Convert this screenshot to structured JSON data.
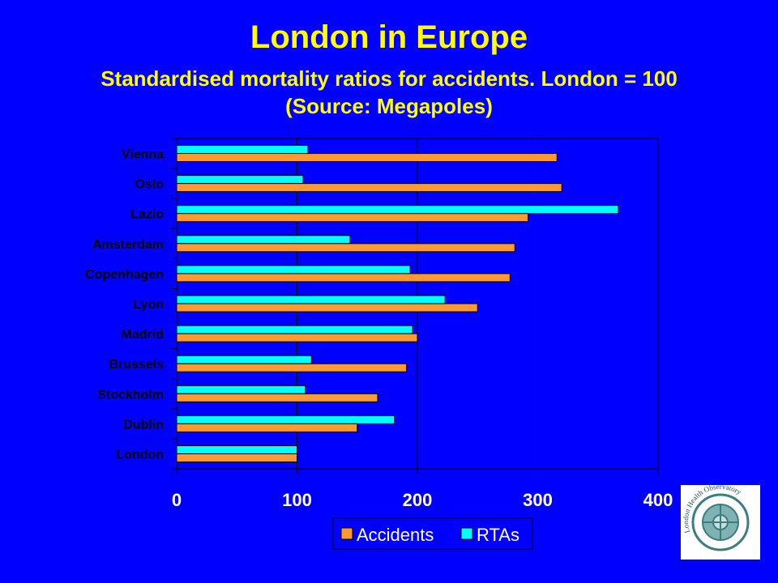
{
  "title": "London in Europe",
  "subtitle_line1": "Standardised mortality ratios for accidents. London = 100",
  "subtitle_line2": "(Source: Megapoles)",
  "colors": {
    "background": "#0000FF",
    "title": "#FFFF00",
    "accidents": "#FF9933",
    "rtas": "#00FFFF",
    "plot_area": "#0000FF",
    "axis_text": "#FFFFFF",
    "category_text": "#000000"
  },
  "logo": {
    "text": "London Health Observatory",
    "icon": "lho-compass-logo"
  },
  "chart_data": {
    "type": "bar",
    "orientation": "horizontal",
    "categories": [
      "Vienna",
      "Oslo",
      "Lazio",
      "Amsterdam",
      "Copenhagen",
      "Lyon",
      "Madrid",
      "Brussels",
      "Stockholm",
      "Dublin",
      "London"
    ],
    "series": [
      {
        "name": "Accidents",
        "values": [
          316,
          320,
          292,
          281,
          277,
          250,
          200,
          191,
          167,
          150,
          100
        ]
      },
      {
        "name": "RTAs",
        "values": [
          109,
          105,
          367,
          144,
          194,
          223,
          196,
          112,
          107,
          181,
          100
        ]
      }
    ],
    "xlim": [
      0,
      400
    ],
    "xticks": [
      "0",
      "100",
      "200",
      "300",
      "400"
    ],
    "grid": "vertical",
    "legend": "bottom"
  }
}
